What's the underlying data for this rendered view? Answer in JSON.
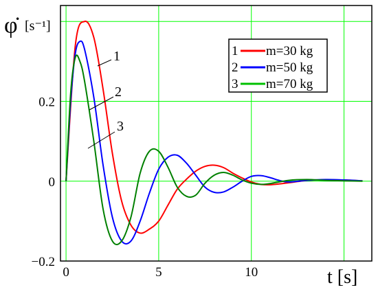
{
  "chart_data": {
    "type": "line",
    "ylabel_symbol": "φ̇",
    "ylabel_unit": "[s⁻¹]",
    "xlabel": "t [s]",
    "xlim": [
      -0.3,
      16.5
    ],
    "ylim": [
      -0.2,
      0.44
    ],
    "grid": true,
    "legend_placement": "top-right",
    "x_ticks": [
      "0",
      "5",
      "10"
    ],
    "y_ticks": [
      "0.2",
      "0",
      "−0.2"
    ],
    "x_tick_values": [
      0,
      5,
      10
    ],
    "y_tick_values": [
      0.2,
      0,
      -0.2
    ],
    "series": [
      {
        "name": "m=30 kg",
        "index_label": "1",
        "color": "#ff0000",
        "x": [
          0,
          0.5,
          1.0,
          1.5,
          2.0,
          2.5,
          3.0,
          3.5,
          4.0,
          4.5,
          5.0,
          5.5,
          6.0,
          6.5,
          7.0,
          7.5,
          8.0,
          8.5,
          9.0,
          9.5,
          10.0,
          10.5,
          11.0,
          11.5,
          12.0,
          12.5,
          13.0,
          13.5,
          14.0,
          14.5,
          15.0,
          15.5,
          16.0
        ],
        "values": [
          0,
          0.34,
          0.4,
          0.36,
          0.23,
          0.07,
          -0.05,
          -0.11,
          -0.13,
          -0.12,
          -0.1,
          -0.06,
          -0.02,
          0.005,
          0.025,
          0.037,
          0.04,
          0.034,
          0.02,
          0.008,
          -0.002,
          -0.008,
          -0.009,
          -0.007,
          -0.004,
          -0.001,
          0.002,
          0.003,
          0.003,
          0.003,
          0.003,
          0.002,
          0.001
        ]
      },
      {
        "name": "m=50 kg",
        "index_label": "2",
        "color": "#0000ff",
        "x": [
          0,
          0.25,
          0.5,
          0.75,
          1.0,
          1.5,
          2.0,
          2.5,
          3.0,
          3.5,
          4.0,
          4.5,
          5.0,
          5.5,
          6.0,
          6.5,
          7.0,
          7.5,
          8.0,
          8.5,
          9.0,
          9.5,
          10.0,
          10.5,
          11.0,
          11.5,
          12.0,
          13.0,
          14.0,
          15.0,
          16.0
        ],
        "values": [
          0,
          0.2,
          0.32,
          0.35,
          0.33,
          0.21,
          0.04,
          -0.09,
          -0.15,
          -0.15,
          -0.1,
          -0.03,
          0.03,
          0.06,
          0.065,
          0.045,
          0.015,
          -0.015,
          -0.028,
          -0.027,
          -0.015,
          0.0,
          0.012,
          0.014,
          0.009,
          0.002,
          -0.002,
          0.002,
          0.004,
          0.003,
          0.001
        ]
      },
      {
        "name": "m=70 kg",
        "index_label": "3",
        "color": "#008000",
        "x": [
          0,
          0.25,
          0.5,
          0.75,
          1.0,
          1.5,
          2.0,
          2.5,
          3.0,
          3.5,
          4.0,
          4.5,
          5.0,
          5.5,
          6.0,
          6.5,
          7.0,
          7.5,
          8.0,
          8.5,
          9.0,
          9.5,
          10.0,
          10.5,
          11.0,
          12.0,
          13.0,
          14.0,
          15.0,
          16.0
        ],
        "values": [
          0,
          0.22,
          0.31,
          0.3,
          0.25,
          0.1,
          -0.07,
          -0.15,
          -0.15,
          -0.09,
          0.02,
          0.075,
          0.075,
          0.035,
          -0.015,
          -0.038,
          -0.035,
          -0.005,
          0.015,
          0.022,
          0.015,
          0.003,
          -0.005,
          -0.008,
          -0.006,
          0.002,
          0.004,
          0.002,
          0.001,
          0.0
        ]
      }
    ]
  }
}
